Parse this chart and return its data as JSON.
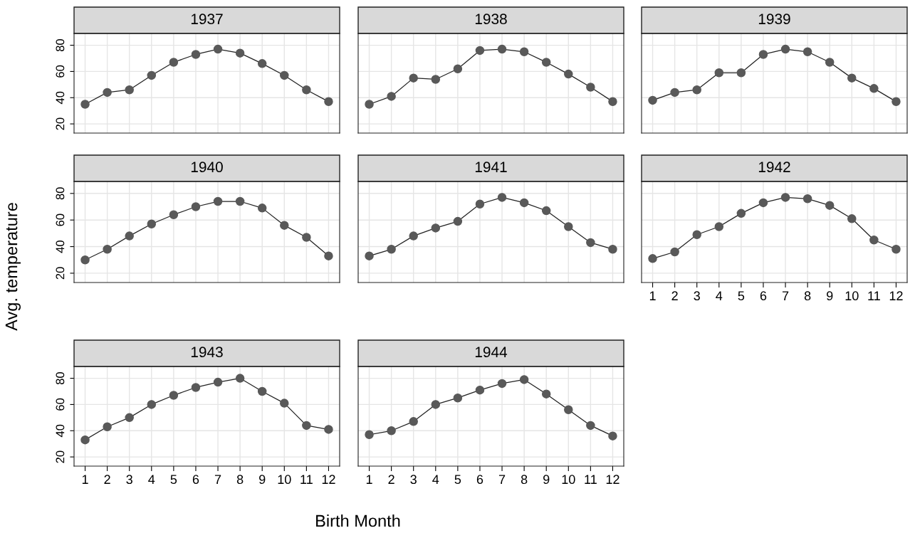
{
  "chart_data": [
    {
      "type": "line",
      "title": "1937",
      "ylabel": "Avg. temperature",
      "xlabel": "Birth Month",
      "categories": [
        "1",
        "2",
        "3",
        "4",
        "5",
        "6",
        "7",
        "8",
        "9",
        "10",
        "11",
        "12"
      ],
      "series": [
        {
          "color": "#595959",
          "values": [
            35,
            44,
            46,
            57,
            67,
            73,
            77,
            74,
            66,
            57,
            46,
            37
          ]
        }
      ],
      "ylim": [
        13,
        89
      ],
      "yticks": [
        20,
        40,
        60,
        80
      ],
      "grid": true,
      "marker": "circle",
      "tick_labels": "y"
    },
    {
      "type": "line",
      "title": "1938",
      "categories": [
        "1",
        "2",
        "3",
        "4",
        "5",
        "6",
        "7",
        "8",
        "9",
        "10",
        "11",
        "12"
      ],
      "series": [
        {
          "color": "#595959",
          "values": [
            35,
            41,
            55,
            54,
            62,
            76,
            77,
            75,
            67,
            58,
            48,
            37
          ]
        }
      ],
      "ylim": [
        13,
        89
      ],
      "yticks": [
        20,
        40,
        60,
        80
      ],
      "grid": true,
      "marker": "circle",
      "tick_labels": false
    },
    {
      "type": "line",
      "title": "1939",
      "categories": [
        "1",
        "2",
        "3",
        "4",
        "5",
        "6",
        "7",
        "8",
        "9",
        "10",
        "11",
        "12"
      ],
      "series": [
        {
          "color": "#595959",
          "values": [
            38,
            44,
            46,
            59,
            59,
            73,
            77,
            75,
            67,
            55,
            47,
            37
          ]
        }
      ],
      "ylim": [
        13,
        89
      ],
      "yticks": [
        20,
        40,
        60,
        80
      ],
      "grid": true,
      "marker": "circle",
      "tick_labels": false
    },
    {
      "type": "line",
      "title": "1940",
      "categories": [
        "1",
        "2",
        "3",
        "4",
        "5",
        "6",
        "7",
        "8",
        "9",
        "10",
        "11",
        "12"
      ],
      "series": [
        {
          "color": "#595959",
          "values": [
            30,
            38,
            48,
            57,
            64,
            70,
            74,
            74,
            69,
            56,
            47,
            33
          ]
        }
      ],
      "ylim": [
        13,
        89
      ],
      "yticks": [
        20,
        40,
        60,
        80
      ],
      "grid": true,
      "marker": "circle",
      "tick_labels": "y"
    },
    {
      "type": "line",
      "title": "1941",
      "categories": [
        "1",
        "2",
        "3",
        "4",
        "5",
        "6",
        "7",
        "8",
        "9",
        "10",
        "11",
        "12"
      ],
      "series": [
        {
          "color": "#595959",
          "values": [
            33,
            38,
            48,
            54,
            59,
            72,
            77,
            73,
            67,
            55,
            43,
            38
          ]
        }
      ],
      "ylim": [
        13,
        89
      ],
      "yticks": [
        20,
        40,
        60,
        80
      ],
      "grid": true,
      "marker": "circle",
      "tick_labels": false
    },
    {
      "type": "line",
      "title": "1942",
      "categories": [
        "1",
        "2",
        "3",
        "4",
        "5",
        "6",
        "7",
        "8",
        "9",
        "10",
        "11",
        "12"
      ],
      "series": [
        {
          "color": "#595959",
          "values": [
            31,
            36,
            49,
            55,
            65,
            73,
            77,
            76,
            71,
            61,
            45,
            38
          ]
        }
      ],
      "ylim": [
        13,
        89
      ],
      "yticks": [
        20,
        40,
        60,
        80
      ],
      "grid": true,
      "marker": "circle",
      "tick_labels": "x"
    },
    {
      "type": "line",
      "title": "1943",
      "categories": [
        "1",
        "2",
        "3",
        "4",
        "5",
        "6",
        "7",
        "8",
        "9",
        "10",
        "11",
        "12"
      ],
      "series": [
        {
          "color": "#595959",
          "values": [
            33,
            43,
            50,
            60,
            67,
            73,
            77,
            80,
            70,
            61,
            44,
            41
          ]
        }
      ],
      "ylim": [
        13,
        89
      ],
      "yticks": [
        20,
        40,
        60,
        80
      ],
      "grid": true,
      "marker": "circle"
    },
    {
      "type": "line",
      "title": "1944",
      "categories": [
        "1",
        "2",
        "3",
        "4",
        "5",
        "6",
        "7",
        "8",
        "9",
        "10",
        "11",
        "12"
      ],
      "series": [
        {
          "color": "#595959",
          "values": [
            37,
            40,
            47,
            60,
            65,
            71,
            76,
            79,
            68,
            56,
            44,
            36
          ]
        }
      ],
      "ylim": [
        13,
        89
      ],
      "yticks": [
        20,
        40,
        60,
        80
      ],
      "grid": true,
      "marker": "circle",
      "tick_labels": "x"
    }
  ]
}
